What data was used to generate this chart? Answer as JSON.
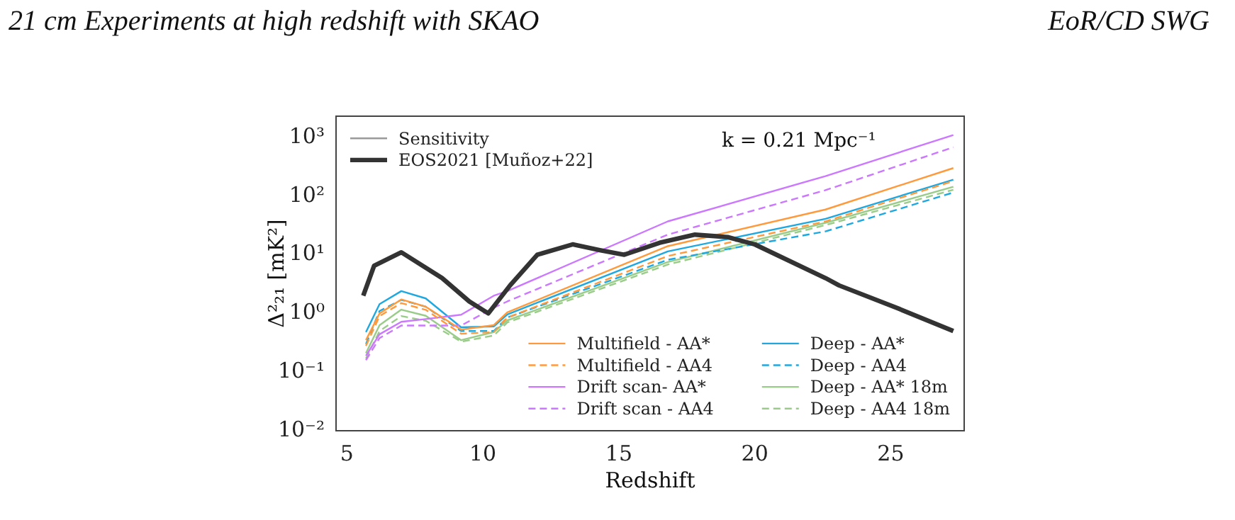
{
  "chart_data": {
    "type": "line",
    "title": "21 cm Experiments at high redshift with SKAO",
    "xlabel": "Redshift",
    "ylabel": "Δ²₂₁ [mK²]",
    "annotations": [
      "EoR/CD SWG",
      "k = 0.21 Mpc⁻¹"
    ],
    "x": [
      5.7,
      6.2,
      7.0,
      7.9,
      9.2,
      10.4,
      10.9,
      16.8,
      22.6,
      27.3
    ],
    "series": [
      {
        "name": "Sensitivity",
        "color": "#999999",
        "values": [
          null,
          null,
          null,
          null,
          null,
          null,
          null,
          null,
          null,
          null
        ]
      },
      {
        "name": "EOS2021 [Muñoz+22]",
        "color": "#333333",
        "x": [
          5.6,
          6.0,
          7.0,
          8.5,
          9.5,
          10.2,
          11.0,
          12.0,
          13.3,
          14.3,
          15.2,
          16.5,
          17.8,
          19.0,
          20.0,
          22.6,
          23.1,
          25.3,
          27.3
        ],
        "values": [
          2.0,
          6.5,
          11,
          4,
          1.6,
          1.0,
          3,
          10,
          15,
          12,
          10,
          16,
          22,
          20,
          15,
          4,
          3,
          1.2,
          0.5
        ]
      },
      {
        "name": "Multifield - AA*",
        "color": "#ff9a3c",
        "values": [
          0.35,
          1.0,
          1.73,
          1.3,
          0.53,
          0.63,
          1.04,
          14,
          59,
          300
        ]
      },
      {
        "name": "Multifield - AA4",
        "color": "#ff9a3c",
        "line_style": "dashed",
        "values": [
          0.28,
          0.9,
          1.5,
          1.15,
          0.45,
          0.48,
          0.85,
          9.5,
          37,
          180
        ]
      },
      {
        "name": "Drift scan- AA*",
        "color": "#cc77ff",
        "values": [
          0.19,
          0.44,
          0.72,
          0.8,
          0.95,
          2.0,
          2.4,
          37,
          219,
          1100
        ]
      },
      {
        "name": "Drift scan - AA4",
        "color": "#cc77ff",
        "line_style": "dashed",
        "values": [
          0.16,
          0.38,
          0.62,
          0.62,
          0.62,
          1.25,
          1.6,
          22,
          126,
          680
        ]
      },
      {
        "name": "Deep - AA*",
        "color": "#1fa8e0",
        "values": [
          0.48,
          1.44,
          2.4,
          1.8,
          0.58,
          0.6,
          0.96,
          11.4,
          41,
          190
        ]
      },
      {
        "name": "Deep - AA4",
        "color": "#1fa8e0",
        "line_style": "dashed",
        "values": [
          0.3,
          1.1,
          1.7,
          1.3,
          0.5,
          0.5,
          0.85,
          8.2,
          25,
          115
        ]
      },
      {
        "name": "Deep - AA* 18m",
        "color": "#99cc88",
        "values": [
          0.21,
          0.63,
          1.16,
          0.91,
          0.35,
          0.48,
          0.76,
          7.5,
          35,
          144
        ]
      },
      {
        "name": "Deep - AA4 18m",
        "color": "#99cc88",
        "line_style": "dashed",
        "values": [
          0.17,
          0.5,
          0.9,
          0.75,
          0.33,
          0.42,
          0.7,
          6.8,
          32,
          128
        ]
      }
    ],
    "log": "y",
    "xlim": [
      4.6,
      27.7
    ],
    "ylim": [
      0.01,
      2300
    ],
    "xticks": [
      5,
      10,
      15,
      20,
      25
    ],
    "yticks": [
      {
        "value": 0.01,
        "label": "10⁻²"
      },
      {
        "value": 0.1,
        "label": "10⁻¹"
      },
      {
        "value": 1,
        "label": "10⁰"
      },
      {
        "value": 10,
        "label": "10¹"
      },
      {
        "value": 100,
        "label": "10²"
      },
      {
        "value": 1000,
        "label": "10³"
      }
    ],
    "grid": false,
    "legend": "bottom right",
    "marker": "none"
  }
}
